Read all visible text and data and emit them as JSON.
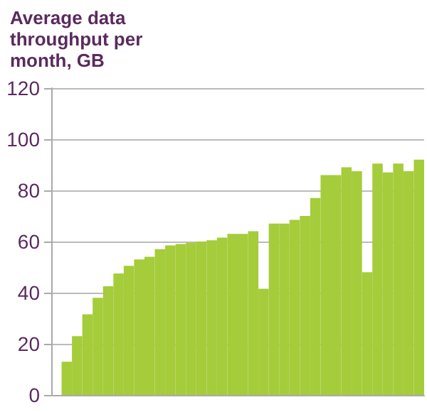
{
  "chart_data": {
    "type": "bar",
    "title": "Average data\nthroughput per\nmonth, GB",
    "categories": [
      null,
      null,
      null,
      null,
      null,
      null,
      null,
      null,
      null,
      null,
      null,
      null,
      null,
      null,
      null,
      null,
      null,
      null,
      null,
      null,
      null,
      null,
      null,
      null,
      null,
      null,
      null,
      null,
      null,
      null,
      null,
      null,
      null,
      null,
      null,
      null
    ],
    "values": [
      null,
      13,
      23,
      31.5,
      38,
      42.5,
      47.5,
      50.5,
      53,
      54,
      57,
      58.5,
      59,
      59.5,
      60,
      60.5,
      61.5,
      63,
      63,
      64,
      41.5,
      67,
      67,
      68.5,
      70,
      77,
      86,
      86,
      89,
      87.5,
      48,
      90.5,
      87,
      90.5,
      87.5,
      92
    ],
    "color": "#a5cc3a",
    "ylim": [
      0,
      120
    ],
    "yticks": [
      0,
      20,
      40,
      60,
      80,
      100,
      120
    ],
    "grid": "y"
  }
}
